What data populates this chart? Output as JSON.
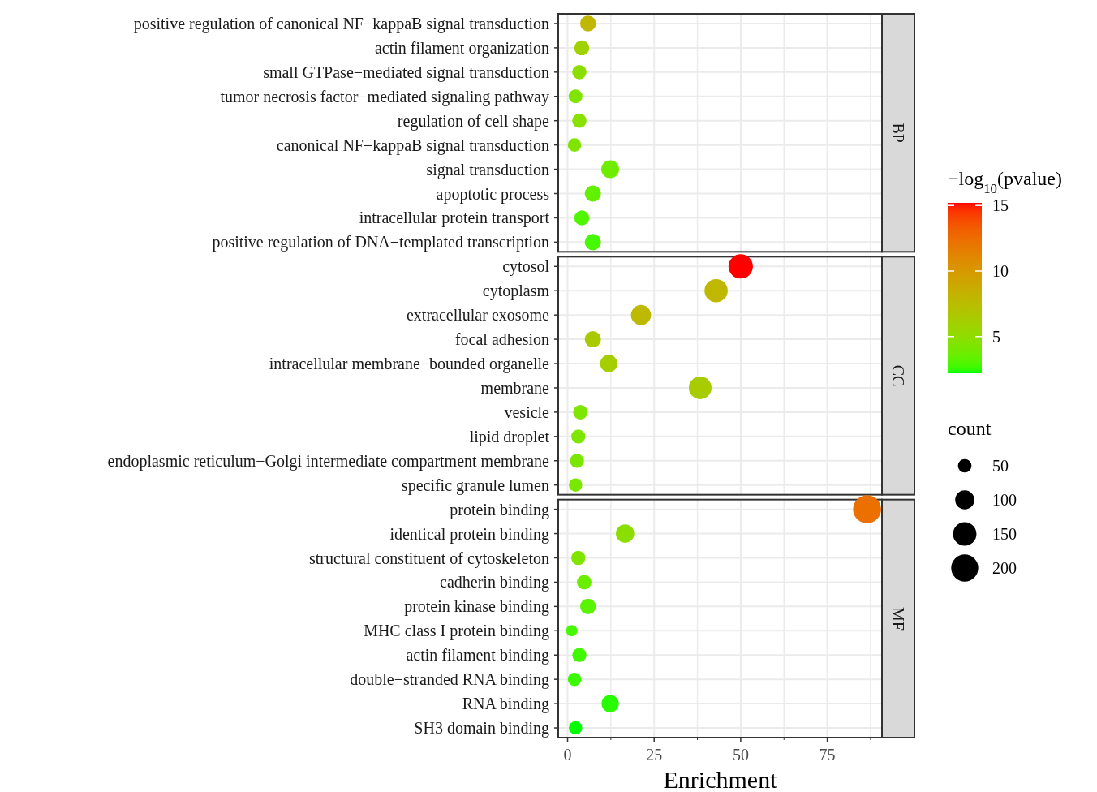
{
  "chart_data": {
    "type": "bubble",
    "orientation": "horizontal",
    "grid": true,
    "xlabel": "Enrichment",
    "xlim": [
      -2.7,
      90.8
    ],
    "xticks": [
      0,
      {
        "value": 12.5,
        "label": null
      },
      25,
      {
        "value": 37.5,
        "label": null
      },
      50,
      {
        "value": 62.5,
        "label": null
      },
      75,
      {
        "value": 87.5,
        "label": null
      }
    ],
    "clabel": "−log$_{10}$(pvalue)",
    "clim": [
      2.2,
      15.2
    ],
    "cticks": [
      5,
      10,
      15
    ],
    "legend_title": "count",
    "size_legend": [
      50,
      100,
      150,
      200
    ],
    "categories": [
      "positive regulation of canonical NF−kappaB signal transduction",
      "actin filament organization",
      "small GTPase−mediated signal transduction",
      "tumor necrosis factor−mediated signaling pathway",
      "regulation of cell shape",
      "canonical NF−kappaB signal transduction",
      "signal transduction",
      "apoptotic process",
      "intracellular protein transport",
      "positive regulation of DNA−templated transcription",
      "cytosol",
      "cytoplasm",
      "extracellular exosome",
      "focal adhesion",
      "intracellular membrane−bounded organelle",
      "membrane",
      "vesicle",
      "lipid droplet",
      "endoplasmic reticulum−Golgi intermediate compartment membrane",
      "specific granule lumen",
      "protein binding",
      "identical protein binding",
      "structural constituent of cytoskeleton",
      "cadherin binding",
      "protein kinase binding",
      "MHC class I protein binding",
      "actin filament binding",
      "double−stranded RNA binding",
      "RNA binding",
      "SH3 domain binding"
    ],
    "values": [
      5.9,
      4.1,
      3.4,
      2.3,
      3.4,
      2.0,
      12.3,
      7.3,
      4.1,
      7.3,
      50.0,
      42.9,
      21.2,
      7.3,
      11.9,
      38.3,
      3.7,
      3.1,
      2.7,
      2.3,
      86.5,
      16.6,
      3.1,
      4.8,
      5.9,
      1.2,
      3.4,
      2.0,
      12.3,
      2.3
    ],
    "sizes": [
      68,
      61,
      56,
      52,
      56,
      49,
      87,
      72,
      61,
      72,
      162,
      147,
      109,
      72,
      82,
      141,
      58,
      54,
      54,
      49,
      215,
      92,
      54,
      58,
      68,
      35,
      54,
      49,
      82,
      49
    ],
    "cvalues": [
      7.9,
      5.9,
      4.9,
      4.4,
      4.7,
      4.4,
      3.8,
      3.4,
      3.0,
      2.8,
      15.2,
      7.9,
      7.8,
      6.5,
      6.2,
      6.3,
      4.3,
      4.3,
      4.2,
      4.1,
      12.3,
      4.9,
      4.4,
      3.6,
      3.2,
      2.8,
      2.7,
      2.6,
      2.4,
      2.2
    ],
    "annotations": [
      "BP",
      "CC",
      "MF"
    ]
  }
}
